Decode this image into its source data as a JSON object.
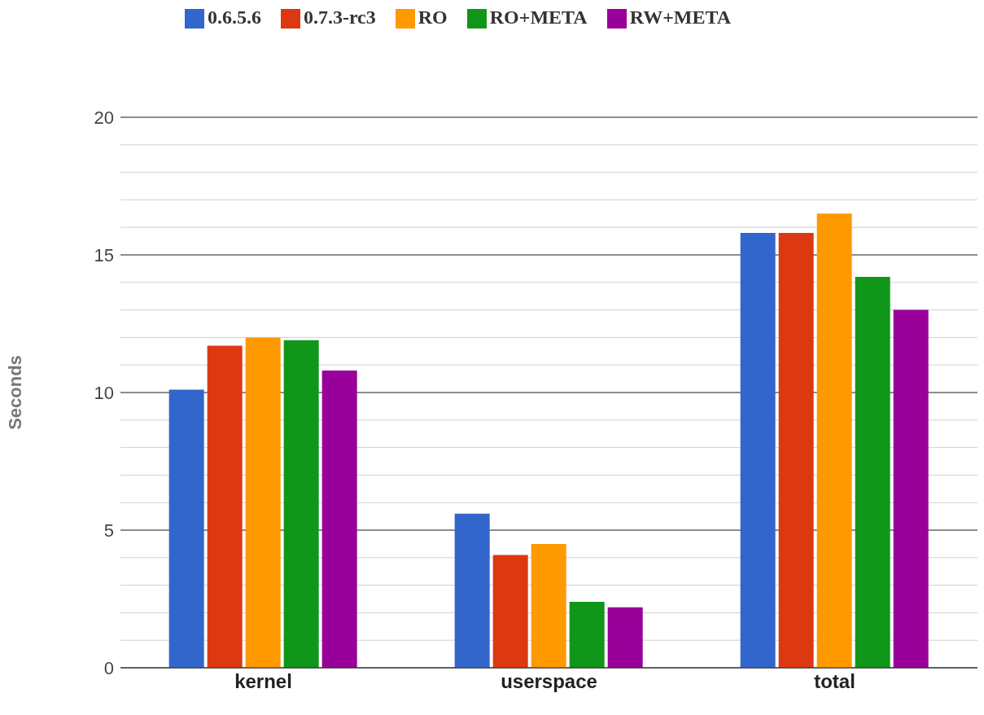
{
  "chart_data": {
    "type": "bar",
    "ylabel": "Seconds",
    "categories": [
      "kernel",
      "userspace",
      "total"
    ],
    "series": [
      {
        "name": "0.6.5.6",
        "color": "#3366cc",
        "values": [
          10.1,
          5.6,
          15.8
        ]
      },
      {
        "name": "0.7.3-rc3",
        "color": "#dc3912",
        "values": [
          11.7,
          4.1,
          15.8
        ]
      },
      {
        "name": "RO",
        "color": "#ff9900",
        "values": [
          12.0,
          4.5,
          16.5
        ]
      },
      {
        "name": "RO+META",
        "color": "#109618",
        "values": [
          11.9,
          2.4,
          14.2
        ]
      },
      {
        "name": "RW+META",
        "color": "#990099",
        "values": [
          10.8,
          2.2,
          13.0
        ]
      }
    ],
    "ylim": [
      0,
      20
    ],
    "yticks": [
      0,
      {
        "value": 1,
        "label": null
      },
      {
        "value": 2,
        "label": null
      },
      {
        "value": 3,
        "label": null
      },
      {
        "value": 4,
        "label": null
      },
      5,
      {
        "value": 6,
        "label": null
      },
      {
        "value": 7,
        "label": null
      },
      {
        "value": 8,
        "label": null
      },
      {
        "value": 9,
        "label": null
      },
      10,
      {
        "value": 11,
        "label": null
      },
      {
        "value": 12,
        "label": null
      },
      {
        "value": 13,
        "label": null
      },
      {
        "value": 14,
        "label": null
      },
      15,
      {
        "value": 16,
        "label": null
      },
      {
        "value": 17,
        "label": null
      },
      {
        "value": 18,
        "label": null
      },
      {
        "value": 19,
        "label": null
      },
      20
    ],
    "grid": "y",
    "legend": "top"
  }
}
